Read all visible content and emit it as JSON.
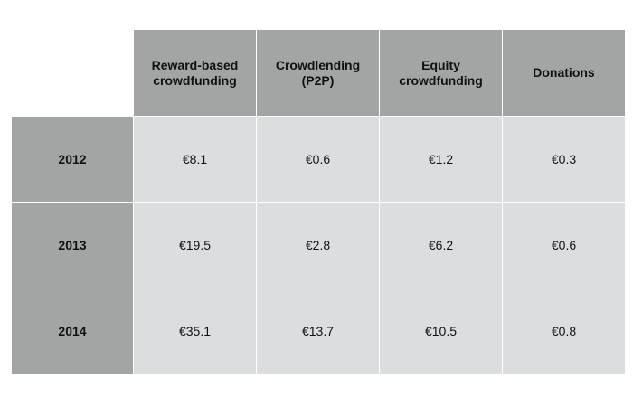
{
  "colors": {
    "header_bg": "#a2a5a3",
    "cell_bg": "#dcdddf",
    "text": "#111111"
  },
  "chart_data": {
    "type": "table",
    "title": "",
    "columns": [
      "Reward-based crowdfunding",
      "Crowdlending (P2P)",
      "Equity crowdfunding",
      "Donations"
    ],
    "rows": [
      {
        "label": "2012",
        "values": [
          "€8.1",
          "€0.6",
          "€1.2",
          "€0.3"
        ]
      },
      {
        "label": "2013",
        "values": [
          "€19.5",
          "€2.8",
          "€6.2",
          "€0.6"
        ]
      },
      {
        "label": "2014",
        "values": [
          "€35.1",
          "€13.7",
          "€10.5",
          "€0.8"
        ]
      }
    ]
  }
}
